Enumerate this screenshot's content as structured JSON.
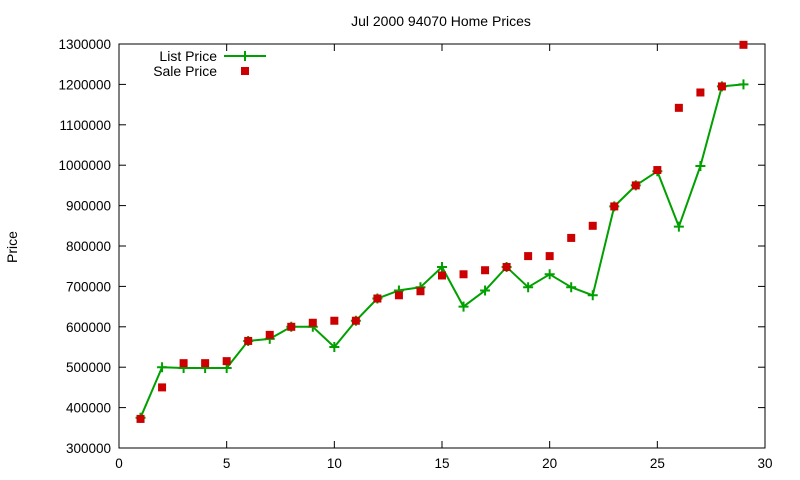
{
  "chart_data": {
    "type": "line",
    "title": "Jul 2000 94070 Home Prices",
    "xlabel": "",
    "ylabel": "Price",
    "xlim": [
      0,
      30
    ],
    "ylim": [
      300000,
      1300000
    ],
    "xticks": [
      0,
      5,
      10,
      15,
      20,
      25,
      30
    ],
    "yticks": [
      300000,
      400000,
      500000,
      600000,
      700000,
      800000,
      900000,
      1000000,
      1100000,
      1200000,
      1300000
    ],
    "grid": false,
    "legend_position": "top-left",
    "series": [
      {
        "name": "List Price",
        "type": "line",
        "marker": "plus",
        "color": "#00a000",
        "x": [
          1,
          2,
          3,
          4,
          5,
          6,
          7,
          8,
          9,
          10,
          11,
          12,
          13,
          14,
          15,
          16,
          17,
          18,
          19,
          20,
          21,
          22,
          23,
          24,
          25,
          26,
          27,
          28,
          29
        ],
        "y": [
          375000,
          500000,
          498000,
          498000,
          498000,
          565000,
          570000,
          600000,
          600000,
          550000,
          615000,
          670000,
          690000,
          698000,
          748000,
          650000,
          690000,
          748000,
          698000,
          730000,
          698000,
          678000,
          898000,
          950000,
          985000,
          848000,
          998000,
          1195000,
          1200000
        ]
      },
      {
        "name": "Sale Price",
        "type": "scatter",
        "marker": "square",
        "color": "#cc0000",
        "x": [
          1,
          2,
          3,
          4,
          5,
          6,
          7,
          8,
          9,
          10,
          11,
          12,
          13,
          14,
          15,
          16,
          17,
          18,
          19,
          20,
          21,
          22,
          23,
          24,
          25,
          26,
          27,
          28,
          29
        ],
        "y": [
          372000,
          450000,
          510000,
          510000,
          515000,
          565000,
          580000,
          600000,
          610000,
          615000,
          615000,
          670000,
          678000,
          688000,
          727000,
          730000,
          740000,
          748000,
          775000,
          775000,
          820000,
          850000,
          898000,
          950000,
          988000,
          1142000,
          1180000,
          1195000,
          1298000
        ]
      }
    ]
  }
}
